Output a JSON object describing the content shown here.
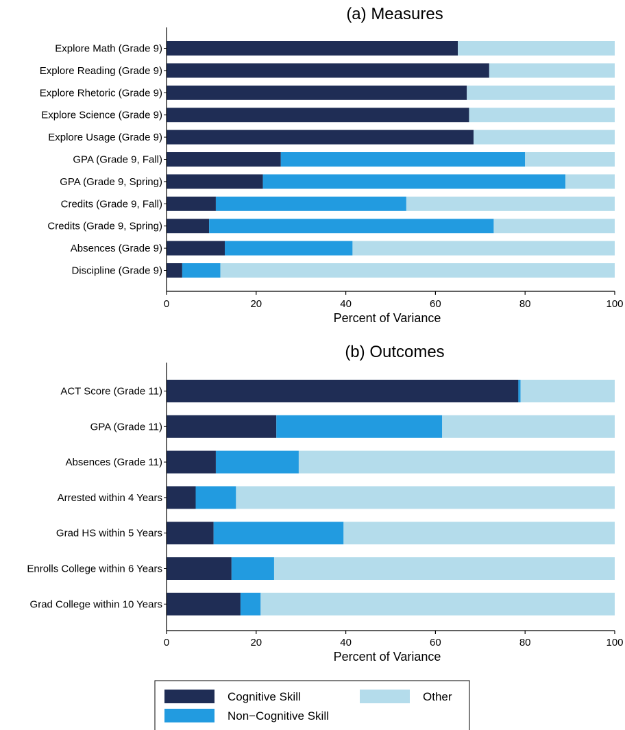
{
  "colors": {
    "cognitive": "#1f2d55",
    "noncognitive": "#229be0",
    "other": "#b4dceb",
    "axis": "#000000"
  },
  "chart_data": [
    {
      "type": "bar",
      "orientation": "horizontal",
      "stacked": true,
      "title": "(a) Measures",
      "xlabel": "Percent of Variance",
      "ylabel": "",
      "xlim": [
        0,
        100
      ],
      "xticks": [
        0,
        20,
        40,
        60,
        80,
        100
      ],
      "grid": false,
      "categories": [
        "Explore Math (Grade 9)",
        "Explore Reading (Grade 9)",
        "Explore Rhetoric (Grade 9)",
        "Explore Science (Grade 9)",
        "Explore Usage (Grade 9)",
        "GPA (Grade 9, Fall)",
        "GPA (Grade 9, Spring)",
        "Credits (Grade 9, Fall)",
        "Credits (Grade 9, Spring)",
        "Absences (Grade 9)",
        "Discipline (Grade 9)"
      ],
      "series": [
        {
          "name": "Cognitive Skill",
          "color_key": "cognitive",
          "values": [
            65,
            72,
            67,
            67.5,
            68.5,
            25.5,
            21.5,
            11,
            9.5,
            13,
            3.5
          ]
        },
        {
          "name": "Non−Cognitive Skill",
          "color_key": "noncognitive",
          "values": [
            0,
            0,
            0,
            0,
            0,
            54.5,
            67.5,
            42.5,
            63.5,
            28.5,
            8.5
          ]
        },
        {
          "name": "Other",
          "color_key": "other",
          "values": [
            35,
            28,
            33,
            32.5,
            31.5,
            20,
            11,
            46.5,
            27,
            58.5,
            88
          ]
        }
      ]
    },
    {
      "type": "bar",
      "orientation": "horizontal",
      "stacked": true,
      "title": "(b) Outcomes",
      "xlabel": "Percent of Variance",
      "ylabel": "",
      "xlim": [
        0,
        100
      ],
      "xticks": [
        0,
        20,
        40,
        60,
        80,
        100
      ],
      "grid": false,
      "categories": [
        "ACT Score (Grade 11)",
        "GPA (Grade 11)",
        "Absences (Grade 11)",
        "Arrested within 4 Years",
        "Grad HS within 5 Years",
        "Enrolls College within 6 Years",
        "Grad College within 10 Years"
      ],
      "series": [
        {
          "name": "Cognitive Skill",
          "color_key": "cognitive",
          "values": [
            78.5,
            24.5,
            11,
            6.5,
            10.5,
            14.5,
            16.5
          ]
        },
        {
          "name": "Non−Cognitive Skill",
          "color_key": "noncognitive",
          "values": [
            0.5,
            37,
            18.5,
            9,
            29,
            9.5,
            4.5
          ]
        },
        {
          "name": "Other",
          "color_key": "other",
          "values": [
            21,
            38.5,
            70.5,
            84.5,
            60.5,
            76,
            79
          ]
        }
      ]
    }
  ],
  "legend": {
    "placement": "bottom",
    "items": [
      {
        "label": "Cognitive Skill",
        "color_key": "cognitive"
      },
      {
        "label": "Other",
        "color_key": "other"
      },
      {
        "label": "Non−Cognitive Skill",
        "color_key": "noncognitive"
      }
    ]
  }
}
